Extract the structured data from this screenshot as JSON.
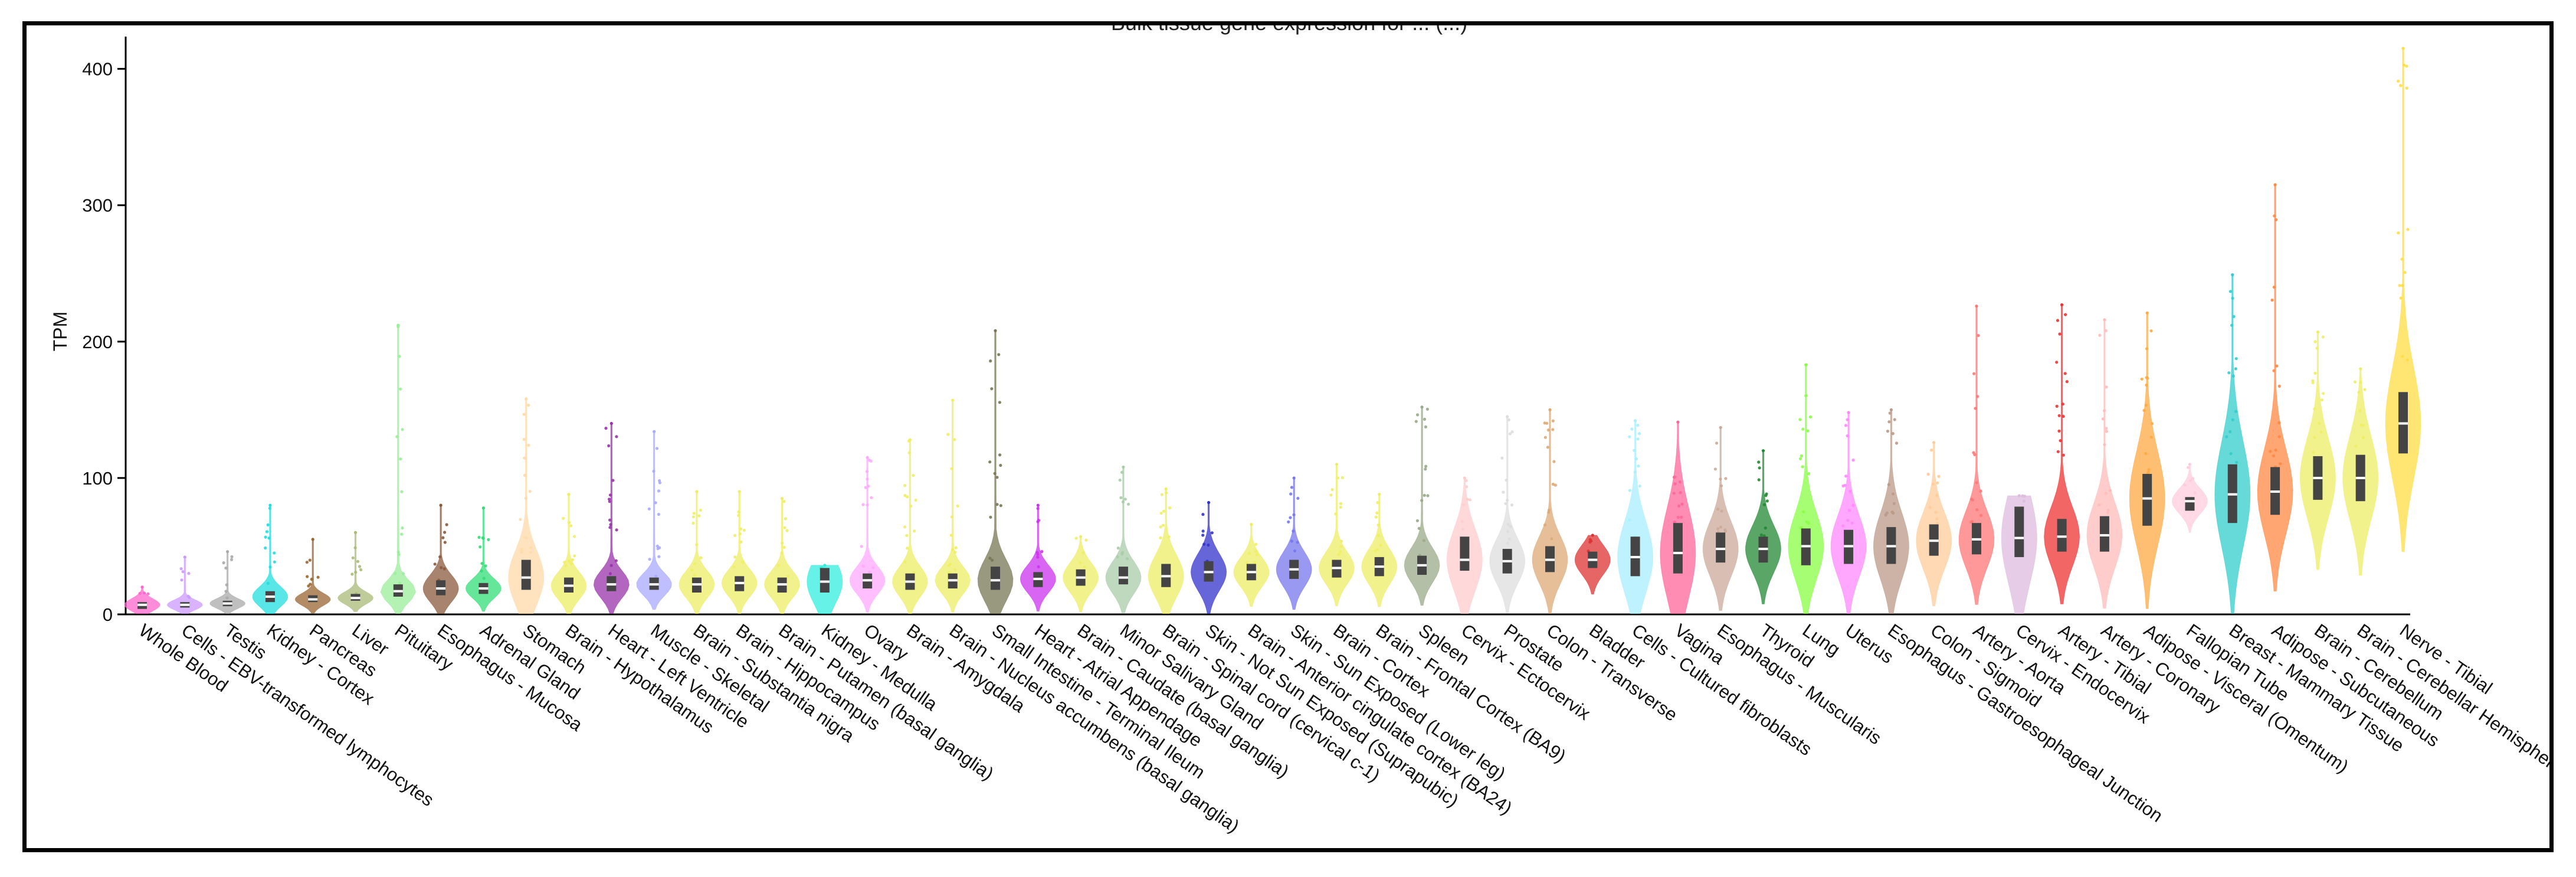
{
  "chart_data": {
    "type": "violin",
    "title": "Bulk tissue gene expression for ... (...)",
    "xlabel": "",
    "ylabel": "TPM",
    "ylim": [
      0,
      415
    ],
    "yticks": [
      0,
      100,
      200,
      300,
      400
    ],
    "grid": false,
    "categories": [
      {
        "name": "Whole Blood",
        "median": 7,
        "q1": 4,
        "q3": 9,
        "max": 20,
        "color": "#ff66cc"
      },
      {
        "name": "Cells - EBV-transformed lymphocytes",
        "median": 7,
        "q1": 5,
        "q3": 9,
        "max": 42,
        "color": "#cc99ff"
      },
      {
        "name": "Testis",
        "median": 8,
        "q1": 6,
        "q3": 10,
        "max": 46,
        "color": "#aaaaaa"
      },
      {
        "name": "Kidney - Cortex",
        "median": 13,
        "q1": 9,
        "q3": 17,
        "max": 80,
        "color": "#22dddd"
      },
      {
        "name": "Pancreas",
        "median": 11,
        "q1": 9,
        "q3": 14,
        "max": 55,
        "color": "#996633"
      },
      {
        "name": "Liver",
        "median": 12,
        "q1": 10,
        "q3": 15,
        "max": 60,
        "color": "#aabb77"
      },
      {
        "name": "Pituitary",
        "median": 17,
        "q1": 13,
        "q3": 22,
        "max": 212,
        "color": "#99ee99"
      },
      {
        "name": "Esophagus - Mucosa",
        "median": 19,
        "q1": 14,
        "q3": 25,
        "max": 80,
        "color": "#8b5a3c"
      },
      {
        "name": "Adrenal Gland",
        "median": 19,
        "q1": 15,
        "q3": 23,
        "max": 78,
        "color": "#33dd77"
      },
      {
        "name": "Stomach",
        "median": 27,
        "q1": 18,
        "q3": 40,
        "max": 158,
        "color": "#ffd9a8"
      },
      {
        "name": "Brain - Hypothalamus",
        "median": 21,
        "q1": 16,
        "q3": 27,
        "max": 88,
        "color": "#eeee66"
      },
      {
        "name": "Heart - Left Ventricle",
        "median": 22,
        "q1": 17,
        "q3": 28,
        "max": 140,
        "color": "#9933aa"
      },
      {
        "name": "Muscle - Skeletal",
        "median": 22,
        "q1": 18,
        "q3": 27,
        "max": 134,
        "color": "#aaaaff"
      },
      {
        "name": "Brain - Substantia nigra",
        "median": 22,
        "q1": 16,
        "q3": 27,
        "max": 90,
        "color": "#eeee66"
      },
      {
        "name": "Brain - Hippocampus",
        "median": 23,
        "q1": 17,
        "q3": 28,
        "max": 90,
        "color": "#eeee66"
      },
      {
        "name": "Brain - Putamen (basal ganglia)",
        "median": 22,
        "q1": 16,
        "q3": 27,
        "max": 85,
        "color": "#eeee66"
      },
      {
        "name": "Kidney - Medulla",
        "median": 24,
        "q1": 16,
        "q3": 34,
        "max": 36,
        "color": "#33eedd"
      },
      {
        "name": "Ovary",
        "median": 25,
        "q1": 19,
        "q3": 30,
        "max": 115,
        "color": "#ffaaff"
      },
      {
        "name": "Brain - Amygdala",
        "median": 24,
        "q1": 18,
        "q3": 30,
        "max": 128,
        "color": "#eeee66"
      },
      {
        "name": "Brain - Nucleus accumbens (basal ganglia)",
        "median": 25,
        "q1": 19,
        "q3": 30,
        "max": 157,
        "color": "#eeee66"
      },
      {
        "name": "Small Intestine - Terminal Ileum",
        "median": 25,
        "q1": 18,
        "q3": 35,
        "max": 208,
        "color": "#777755"
      },
      {
        "name": "Heart - Atrial Appendage",
        "median": 26,
        "q1": 20,
        "q3": 31,
        "max": 80,
        "color": "#cc33ee"
      },
      {
        "name": "Brain - Caudate (basal ganglia)",
        "median": 27,
        "q1": 21,
        "q3": 33,
        "max": 57,
        "color": "#eeee66"
      },
      {
        "name": "Minor Salivary Gland",
        "median": 27,
        "q1": 22,
        "q3": 35,
        "max": 108,
        "color": "#aaccaa"
      },
      {
        "name": "Brain - Spinal cord (cervical c-1)",
        "median": 28,
        "q1": 20,
        "q3": 37,
        "max": 92,
        "color": "#eeee66"
      },
      {
        "name": "Skin - Not Sun Exposed (Suprapubic)",
        "median": 31,
        "q1": 24,
        "q3": 39,
        "max": 82,
        "color": "#3333cc"
      },
      {
        "name": "Brain - Anterior cingulate cortex (BA24)",
        "median": 31,
        "q1": 25,
        "q3": 37,
        "max": 66,
        "color": "#eeee66"
      },
      {
        "name": "Skin - Sun Exposed (Lower leg)",
        "median": 33,
        "q1": 26,
        "q3": 40,
        "max": 100,
        "color": "#7777ee"
      },
      {
        "name": "Brain - Cortex",
        "median": 34,
        "q1": 27,
        "q3": 40,
        "max": 110,
        "color": "#eeee66"
      },
      {
        "name": "Brain - Frontal Cortex (BA9)",
        "median": 35,
        "q1": 28,
        "q3": 42,
        "max": 88,
        "color": "#eeee66"
      },
      {
        "name": "Spleen",
        "median": 36,
        "q1": 29,
        "q3": 43,
        "max": 152,
        "color": "#99aa88"
      },
      {
        "name": "Cervix - Ectocervix",
        "median": 40,
        "q1": 32,
        "q3": 57,
        "max": 100,
        "color": "#ffcccc"
      },
      {
        "name": "Prostate",
        "median": 39,
        "q1": 30,
        "q3": 48,
        "max": 145,
        "color": "#dddddd"
      },
      {
        "name": "Colon - Transverse",
        "median": 40,
        "q1": 31,
        "q3": 50,
        "max": 150,
        "color": "#ddaa77"
      },
      {
        "name": "Bladder",
        "median": 40,
        "q1": 34,
        "q3": 46,
        "max": 58,
        "color": "#dd3333"
      },
      {
        "name": "Cells - Cultured fibroblasts",
        "median": 42,
        "q1": 28,
        "q3": 57,
        "max": 142,
        "color": "#aaeeff"
      },
      {
        "name": "Vagina",
        "median": 45,
        "q1": 30,
        "q3": 67,
        "max": 141,
        "color": "#ff6699"
      },
      {
        "name": "Esophagus - Muscularis",
        "median": 48,
        "q1": 38,
        "q3": 60,
        "max": 137,
        "color": "#ccaa99"
      },
      {
        "name": "Thyroid",
        "median": 48,
        "q1": 38,
        "q3": 57,
        "max": 120,
        "color": "#228833"
      },
      {
        "name": "Lung",
        "median": 50,
        "q1": 36,
        "q3": 63,
        "max": 183,
        "color": "#88ff44"
      },
      {
        "name": "Uterus",
        "median": 50,
        "q1": 37,
        "q3": 62,
        "max": 148,
        "color": "#ff88ff"
      },
      {
        "name": "Esophagus - Gastroesophageal Junction",
        "median": 50,
        "q1": 37,
        "q3": 64,
        "max": 150,
        "color": "#bb9988"
      },
      {
        "name": "Colon - Sigmoid",
        "median": 54,
        "q1": 43,
        "q3": 66,
        "max": 126,
        "color": "#ffcc99"
      },
      {
        "name": "Artery - Aorta",
        "median": 55,
        "q1": 44,
        "q3": 67,
        "max": 226,
        "color": "#ff7777"
      },
      {
        "name": "Cervix - Endocervix",
        "median": 56,
        "q1": 42,
        "q3": 79,
        "max": 87,
        "color": "#ddbbdd"
      },
      {
        "name": "Artery - Tibial",
        "median": 57,
        "q1": 46,
        "q3": 70,
        "max": 227,
        "color": "#ee3333"
      },
      {
        "name": "Artery - Coronary",
        "median": 58,
        "q1": 46,
        "q3": 72,
        "max": 216,
        "color": "#ffbbbb"
      },
      {
        "name": "Adipose - Visceral (Omentum)",
        "median": 85,
        "q1": 65,
        "q3": 103,
        "max": 221,
        "color": "#ffaa44"
      },
      {
        "name": "Fallopian Tube",
        "median": 83,
        "q1": 76,
        "q3": 86,
        "max": 110,
        "color": "#ffccdd"
      },
      {
        "name": "Breast - Mammary Tissue",
        "median": 88,
        "q1": 67,
        "q3": 110,
        "max": 249,
        "color": "#33cccc"
      },
      {
        "name": "Adipose - Subcutaneous",
        "median": 90,
        "q1": 73,
        "q3": 108,
        "max": 315,
        "color": "#ff8844"
      },
      {
        "name": "Brain - Cerebellum",
        "median": 100,
        "q1": 84,
        "q3": 116,
        "max": 207,
        "color": "#eeee66"
      },
      {
        "name": "Brain - Cerebellar Hemisphere",
        "median": 100,
        "q1": 83,
        "q3": 117,
        "max": 180,
        "color": "#eeee66"
      },
      {
        "name": "Nerve - Tibial",
        "median": 140,
        "q1": 118,
        "q3": 163,
        "max": 415,
        "color": "#ffdd44"
      }
    ]
  }
}
